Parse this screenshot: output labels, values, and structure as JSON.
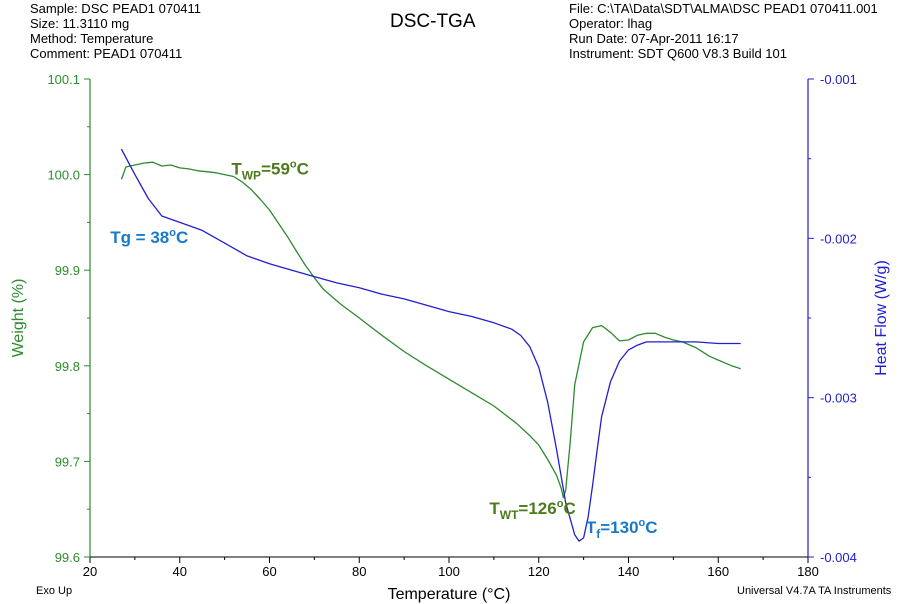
{
  "header": {
    "sample": "Sample: DSC PEAD1 070411",
    "size": "Size:  11.3110 mg",
    "method": "Method: Temperature",
    "comment": "Comment: PEAD1 070411",
    "file": "File: C:\\TA\\Data\\SDT\\ALMA\\DSC PEAD1 070411.001",
    "operator": "Operator: lhag",
    "run_date": "Run Date: 07-Apr-2011 16:17",
    "instrument": "Instrument: SDT Q600 V8.3 Build 101"
  },
  "title": "DSC-TGA",
  "exo_label": "Exo Up",
  "footer": "Universal V4.7A TA Instruments",
  "colors": {
    "weight": "#2e8b2e",
    "heat": "#2020d0",
    "tg": "#1a7ac8",
    "weight_annot": "#4e7a1e",
    "axis": "#000000"
  },
  "chart_data": {
    "type": "line",
    "title": "DSC-TGA",
    "xlabel": "Temperature (°C)",
    "ylabel_left": "Weight (%)",
    "ylabel_right": "Heat Flow (W/g)",
    "xlim": [
      20,
      180
    ],
    "ylim_left": [
      99.6,
      100.1
    ],
    "ylim_right": [
      -0.004,
      -0.001
    ],
    "x_ticks": [
      "20",
      "40",
      "60",
      "80",
      "100",
      "120",
      "140",
      "160",
      "180"
    ],
    "y_ticks_left": [
      "99.6",
      "99.7",
      "99.8",
      "99.9",
      "100.0",
      "100.1"
    ],
    "y_ticks_right": [
      "-0.004",
      "-0.003",
      "-0.002",
      "-0.001"
    ],
    "grid": false,
    "series": [
      {
        "axis": "left",
        "x": [
          27,
          28,
          30,
          32,
          34,
          36,
          38,
          40,
          42,
          44,
          46,
          48,
          50,
          52,
          54,
          56,
          58,
          60,
          62,
          64,
          66,
          68,
          70,
          72,
          74,
          76,
          80,
          85,
          90,
          95,
          100,
          105,
          110,
          115,
          118,
          120,
          122,
          124,
          125,
          125.5,
          126,
          127,
          128,
          130,
          132,
          134,
          136,
          138,
          140,
          142,
          144,
          146,
          148,
          150,
          152,
          155,
          158,
          160,
          163,
          165
        ],
        "y": [
          99.995,
          100.008,
          100.01,
          100.012,
          100.013,
          100.009,
          100.01,
          100.007,
          100.006,
          100.004,
          100.003,
          100.002,
          100.0,
          99.998,
          99.992,
          99.984,
          99.974,
          99.963,
          99.949,
          99.935,
          99.92,
          99.905,
          99.892,
          99.88,
          99.872,
          99.864,
          99.85,
          99.832,
          99.815,
          99.8,
          99.786,
          99.772,
          99.758,
          99.74,
          99.727,
          99.717,
          99.702,
          99.685,
          99.672,
          99.662,
          99.67,
          99.72,
          99.78,
          99.825,
          99.84,
          99.842,
          99.835,
          99.826,
          99.827,
          99.832,
          99.834,
          99.834,
          99.83,
          99.827,
          99.825,
          99.819,
          99.81,
          99.806,
          99.8,
          99.797
        ]
      },
      {
        "axis": "right",
        "x": [
          27,
          30,
          33,
          36,
          40,
          45,
          50,
          55,
          60,
          65,
          70,
          75,
          80,
          85,
          90,
          95,
          100,
          105,
          110,
          114,
          116,
          118,
          120,
          122,
          124,
          126,
          128,
          129,
          130,
          131,
          132,
          133,
          134,
          136,
          138,
          140,
          142,
          144,
          146,
          148,
          150,
          155,
          160,
          165
        ],
        "y": [
          -0.00144,
          -0.0016,
          -0.00175,
          -0.00186,
          -0.0019,
          -0.00195,
          -0.00203,
          -0.00211,
          -0.00216,
          -0.0022,
          -0.00224,
          -0.00228,
          -0.00231,
          -0.00235,
          -0.00238,
          -0.00242,
          -0.00246,
          -0.00249,
          -0.00253,
          -0.00257,
          -0.00261,
          -0.00268,
          -0.00281,
          -0.00303,
          -0.00333,
          -0.00366,
          -0.00386,
          -0.0039,
          -0.00388,
          -0.00375,
          -0.00355,
          -0.00333,
          -0.00312,
          -0.0029,
          -0.00277,
          -0.0027,
          -0.00267,
          -0.00265,
          -0.00265,
          -0.00265,
          -0.00265,
          -0.00265,
          -0.00266,
          -0.00266
        ]
      }
    ],
    "annotations": [
      {
        "id": "twp",
        "base": "T",
        "sub": "WP",
        "text": "=59",
        "sup": "o",
        "unit": "C"
      },
      {
        "id": "tg",
        "base": "Tg = 38",
        "sub": "",
        "text": "",
        "sup": "o",
        "unit": "C"
      },
      {
        "id": "twt",
        "base": "T",
        "sub": "WT",
        "text": "=126",
        "sup": "o",
        "unit": "C"
      },
      {
        "id": "tf",
        "base": "T",
        "sub": "f",
        "text": "=130",
        "sup": "o",
        "unit": "C"
      }
    ]
  }
}
